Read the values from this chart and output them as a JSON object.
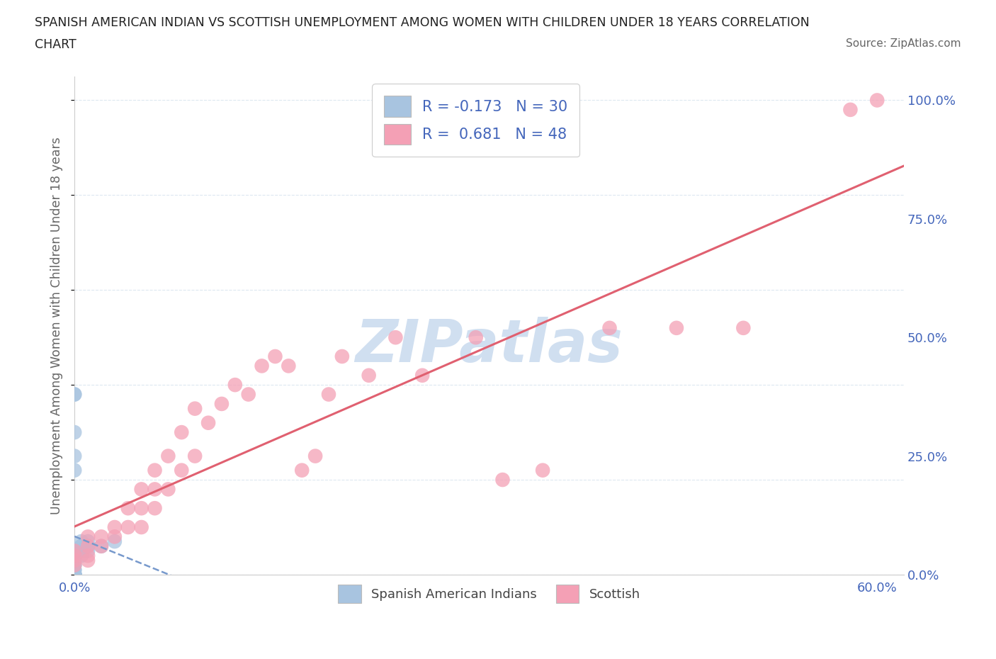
{
  "title_line1": "SPANISH AMERICAN INDIAN VS SCOTTISH UNEMPLOYMENT AMONG WOMEN WITH CHILDREN UNDER 18 YEARS CORRELATION",
  "title_line2": "CHART",
  "source": "Source: ZipAtlas.com",
  "ylabel": "Unemployment Among Women with Children Under 18 years",
  "xlim": [
    0.0,
    0.62
  ],
  "ylim": [
    0.0,
    1.05
  ],
  "xticks": [
    0.0,
    0.1,
    0.2,
    0.3,
    0.4,
    0.5,
    0.6
  ],
  "xticklabels": [
    "0.0%",
    "",
    "",
    "",
    "",
    "",
    "60.0%"
  ],
  "yticks_right": [
    0.0,
    0.25,
    0.5,
    0.75,
    1.0
  ],
  "yticklabels_right": [
    "0.0%",
    "25.0%",
    "50.0%",
    "75.0%",
    "100.0%"
  ],
  "legend_labels": [
    "Spanish American Indians",
    "Scottish"
  ],
  "legend_R": [
    -0.173,
    0.681
  ],
  "legend_N": [
    30,
    48
  ],
  "blue_color": "#a8c4e0",
  "pink_color": "#f4a0b5",
  "blue_line_color": "#7799cc",
  "pink_line_color": "#e06070",
  "text_color": "#4466bb",
  "watermark_color": "#d0dff0",
  "background_color": "#ffffff",
  "grid_color": "#dde8f0",
  "spanish_american_indian_x": [
    0.0,
    0.0,
    0.0,
    0.0,
    0.0,
    0.0,
    0.0,
    0.0,
    0.0,
    0.0,
    0.0,
    0.0,
    0.0,
    0.0,
    0.0,
    0.005,
    0.005,
    0.005,
    0.005,
    0.005,
    0.01,
    0.01,
    0.01,
    0.02,
    0.03,
    0.0,
    0.0,
    0.0,
    0.0,
    0.0
  ],
  "spanish_american_indian_y": [
    0.0,
    0.0,
    0.0,
    0.0,
    0.0,
    0.0,
    0.0,
    0.0,
    0.01,
    0.01,
    0.02,
    0.02,
    0.03,
    0.04,
    0.05,
    0.04,
    0.05,
    0.06,
    0.06,
    0.07,
    0.05,
    0.06,
    0.07,
    0.06,
    0.07,
    0.25,
    0.3,
    0.38,
    0.38,
    0.22
  ],
  "scottish_x": [
    0.0,
    0.0,
    0.0,
    0.0,
    0.01,
    0.01,
    0.01,
    0.01,
    0.02,
    0.02,
    0.03,
    0.03,
    0.04,
    0.04,
    0.05,
    0.05,
    0.05,
    0.06,
    0.06,
    0.06,
    0.07,
    0.07,
    0.08,
    0.08,
    0.09,
    0.09,
    0.1,
    0.11,
    0.12,
    0.13,
    0.14,
    0.15,
    0.16,
    0.17,
    0.18,
    0.19,
    0.2,
    0.22,
    0.24,
    0.26,
    0.3,
    0.32,
    0.35,
    0.4,
    0.45,
    0.5,
    0.58,
    0.6
  ],
  "scottish_y": [
    0.02,
    0.03,
    0.04,
    0.05,
    0.03,
    0.04,
    0.06,
    0.08,
    0.06,
    0.08,
    0.08,
    0.1,
    0.1,
    0.14,
    0.1,
    0.14,
    0.18,
    0.14,
    0.18,
    0.22,
    0.18,
    0.25,
    0.22,
    0.3,
    0.25,
    0.35,
    0.32,
    0.36,
    0.4,
    0.38,
    0.44,
    0.46,
    0.44,
    0.22,
    0.25,
    0.38,
    0.46,
    0.42,
    0.5,
    0.42,
    0.5,
    0.2,
    0.22,
    0.52,
    0.52,
    0.52,
    0.98,
    1.0
  ]
}
